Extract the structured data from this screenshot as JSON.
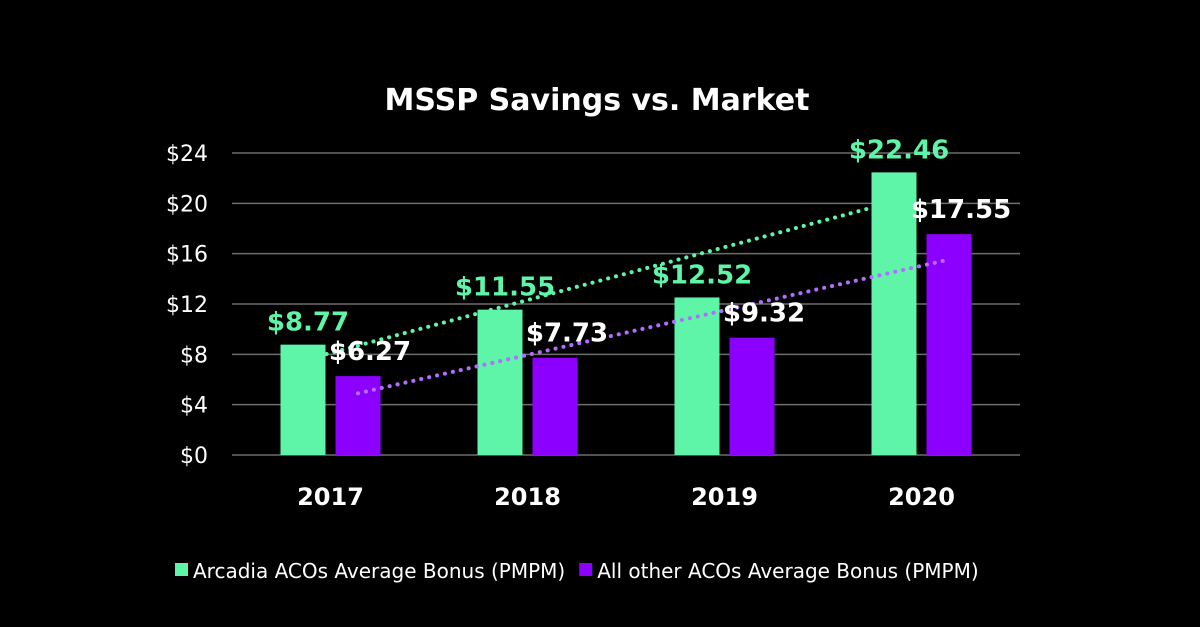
{
  "colors": {
    "background": "#000000",
    "arcadia": "#5ff5a8",
    "others": "#8c00ff",
    "arcadia_trend": "#5ff5a8",
    "others_trend": "#b46cff",
    "grid": "#6e6e6e",
    "text": "#ffffff"
  },
  "chart_data": {
    "type": "bar",
    "title": "MSSP Savings vs. Market",
    "categories": [
      "2017",
      "2018",
      "2019",
      "2020"
    ],
    "series": [
      {
        "name": "Arcadia ACOs Average Bonus (PMPM)",
        "values": [
          8.77,
          11.55,
          12.52,
          22.46
        ],
        "labels": [
          "$8.77",
          "$11.55",
          "$12.52",
          "$22.46"
        ]
      },
      {
        "name": "All other ACOs Average Bonus (PMPM)",
        "values": [
          6.27,
          7.73,
          9.32,
          17.55
        ],
        "labels": [
          "$6.27",
          "$7.73",
          "$9.32",
          "$17.55"
        ]
      }
    ],
    "trendlines": true,
    "ylim": [
      0,
      24
    ],
    "yticks": [
      0,
      4,
      8,
      12,
      16,
      20,
      24
    ],
    "ytick_labels": [
      "$0",
      "$4",
      "$8",
      "$12",
      "$16",
      "$20",
      "$24"
    ],
    "grid": true,
    "legend_position": "bottom"
  }
}
